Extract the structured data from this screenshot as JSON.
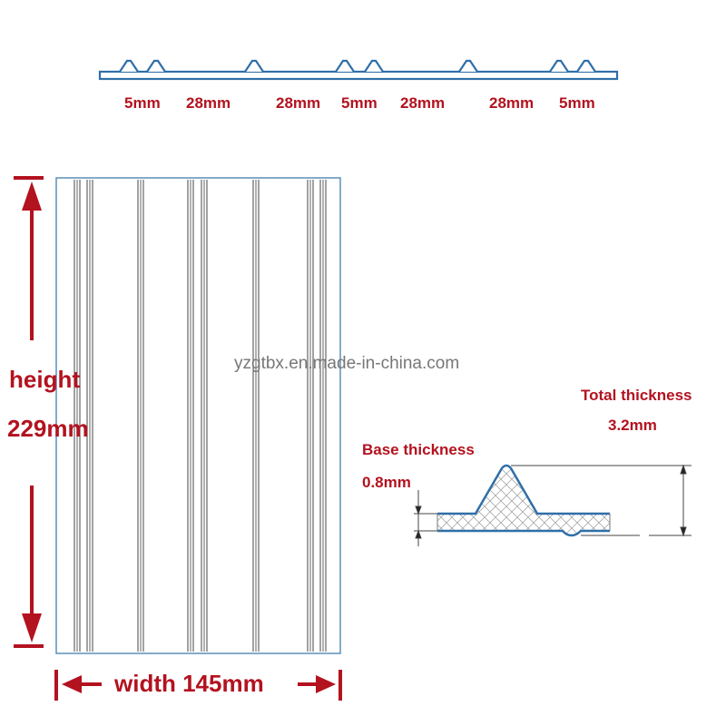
{
  "profile": {
    "spacing_labels": [
      "5mm",
      "28mm",
      "28mm",
      "5mm",
      "28mm",
      "28mm",
      "5mm"
    ]
  },
  "panel": {
    "height_label": "height",
    "height_value": "229mm",
    "width_label": "width 145mm"
  },
  "cross_section": {
    "base_label": "Base thickness",
    "base_value": "0.8mm",
    "total_label": "Total thickness",
    "total_value": "3.2mm"
  },
  "watermark": "yzgtbx.en.made-in-china.com",
  "colors": {
    "annotation_red": "#b3121f",
    "outline_blue": "#2f6fa8"
  }
}
